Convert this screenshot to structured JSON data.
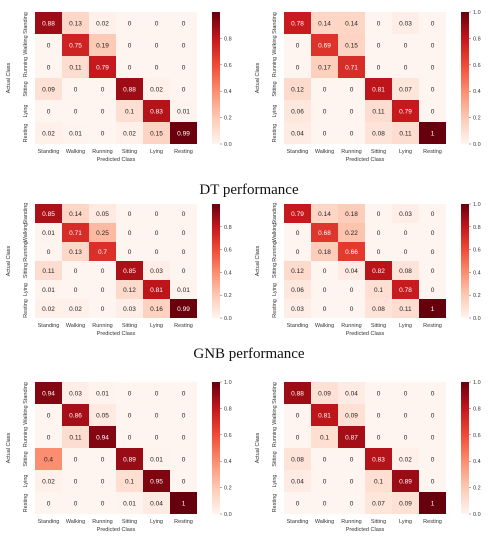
{
  "captions": [
    "DT performance",
    "GNB performance"
  ],
  "chart_data": [
    {
      "type": "heatmap",
      "xlabel": "Predicted Class",
      "ylabel": "Actual Class",
      "categories": [
        "Standing",
        "Walking",
        "Running",
        "Sitting",
        "Lying",
        "Resting"
      ],
      "colorbar_ticks": [
        0.0,
        0.2,
        0.4,
        0.6,
        0.8
      ],
      "values": [
        [
          0.88,
          0.13,
          0.02,
          0,
          0,
          0
        ],
        [
          0,
          0.75,
          0.19,
          0,
          0,
          0
        ],
        [
          0,
          0.11,
          0.79,
          0,
          0,
          0
        ],
        [
          0.09,
          0,
          0,
          0.88,
          0.02,
          0
        ],
        [
          0,
          0,
          0,
          0.1,
          0.83,
          0.01
        ],
        [
          0.02,
          0.01,
          0,
          0.02,
          0.15,
          0.99
        ]
      ]
    },
    {
      "type": "heatmap",
      "xlabel": "Predicted Class",
      "ylabel": "Actual Class",
      "categories": [
        "Standing",
        "Walking",
        "Running",
        "Sitting",
        "Lying",
        "Resting"
      ],
      "colorbar_ticks": [
        0.0,
        0.2,
        0.4,
        0.6,
        0.8,
        1.0
      ],
      "values": [
        [
          0.78,
          0.14,
          0.14,
          0,
          0.03,
          0
        ],
        [
          0,
          0.69,
          0.15,
          0,
          0,
          0
        ],
        [
          0,
          0.17,
          0.71,
          0,
          0,
          0
        ],
        [
          0.12,
          0,
          0,
          0.81,
          0.07,
          0
        ],
        [
          0.06,
          0,
          0,
          0.11,
          0.79,
          0
        ],
        [
          0.04,
          0,
          0,
          0.08,
          0.11,
          1
        ]
      ]
    },
    {
      "type": "heatmap",
      "xlabel": "Predicted Class",
      "ylabel": "Actual Class",
      "categories": [
        "Standing",
        "Walking",
        "Running",
        "Sitting",
        "Lying",
        "Resting"
      ],
      "colorbar_ticks": [
        0.0,
        0.2,
        0.4,
        0.6,
        0.8
      ],
      "values": [
        [
          0.85,
          0.14,
          0.05,
          0,
          0,
          0
        ],
        [
          0.01,
          0.71,
          0.25,
          0,
          0,
          0
        ],
        [
          0,
          0.13,
          0.7,
          0,
          0,
          0
        ],
        [
          0.11,
          0,
          0,
          0.85,
          0.03,
          0
        ],
        [
          0.01,
          0,
          0,
          0.12,
          0.81,
          0.01
        ],
        [
          0.02,
          0.02,
          0,
          0.03,
          0.16,
          0.99
        ]
      ]
    },
    {
      "type": "heatmap",
      "xlabel": "Predicted Class",
      "ylabel": "Actual Class",
      "categories": [
        "Standing",
        "Walking",
        "Running",
        "Sitting",
        "Lying",
        "Resting"
      ],
      "colorbar_ticks": [
        0.0,
        0.2,
        0.4,
        0.6,
        0.8,
        1.0
      ],
      "values": [
        [
          0.79,
          0.14,
          0.18,
          0,
          0.03,
          0
        ],
        [
          0,
          0.68,
          0.22,
          0,
          0,
          0
        ],
        [
          0,
          0.18,
          0.66,
          0,
          0,
          0
        ],
        [
          0.12,
          0,
          0.04,
          0.82,
          0.08,
          0
        ],
        [
          0.06,
          0,
          0,
          0.1,
          0.78,
          0
        ],
        [
          0.03,
          0,
          0,
          0.08,
          0.11,
          1
        ]
      ]
    },
    {
      "type": "heatmap",
      "xlabel": "Predicted Class",
      "ylabel": "Actual Class",
      "categories": [
        "Standing",
        "Walking",
        "Running",
        "Sitting",
        "Lying",
        "Resting"
      ],
      "colorbar_ticks": [
        0.0,
        0.2,
        0.4,
        0.6,
        0.8,
        1.0
      ],
      "values": [
        [
          0.94,
          0.03,
          0.01,
          0,
          0,
          0
        ],
        [
          0,
          0.86,
          0.05,
          0,
          0,
          0
        ],
        [
          0,
          0.11,
          0.94,
          0,
          0,
          0
        ],
        [
          0.4,
          0,
          0,
          0.89,
          0.01,
          0
        ],
        [
          0.02,
          0,
          0,
          0.1,
          0.95,
          0
        ],
        [
          0,
          0,
          0,
          0.01,
          0.04,
          1
        ]
      ]
    },
    {
      "type": "heatmap",
      "xlabel": "Predicted Class",
      "ylabel": "Actual Class",
      "categories": [
        "Standing",
        "Walking",
        "Running",
        "Sitting",
        "Lying",
        "Resting"
      ],
      "colorbar_ticks": [
        0.0,
        0.2,
        0.4,
        0.6,
        0.8,
        1.0
      ],
      "values": [
        [
          0.88,
          0.09,
          0.04,
          0,
          0,
          0
        ],
        [
          0,
          0.81,
          0.09,
          0,
          0,
          0
        ],
        [
          0,
          0.1,
          0.87,
          0,
          0,
          0
        ],
        [
          0.08,
          0,
          0,
          0.83,
          0.02,
          0
        ],
        [
          0.04,
          0,
          0,
          0.1,
          0.89,
          0
        ],
        [
          0,
          0,
          0,
          0.07,
          0.09,
          1
        ]
      ]
    }
  ]
}
